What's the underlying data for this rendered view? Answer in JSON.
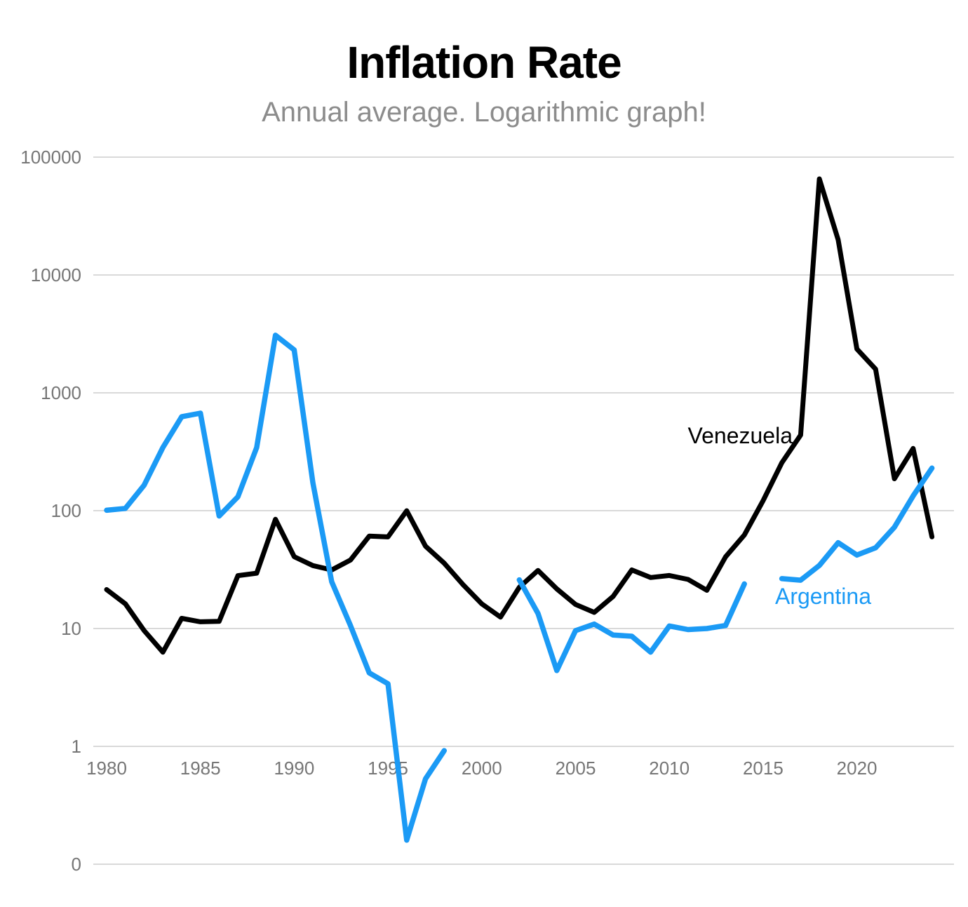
{
  "chart_data": {
    "type": "line",
    "title": "Inflation Rate",
    "subtitle": "Annual average. Logarithmic graph!",
    "y_scale": "log10",
    "grid": true,
    "grid_color": "#d9d9d9",
    "background_color": "#ffffff",
    "x_range": [
      1980,
      2024
    ],
    "y_axis": {
      "tick_labels": [
        "100000",
        "10000",
        "1000",
        "100",
        "10",
        "1",
        "0"
      ],
      "label_color": "#767676",
      "note": "logarithmic scale, one decade per gridline; bottom line labeled 0"
    },
    "x_axis": {
      "ticks": [
        1980,
        1985,
        1990,
        1995,
        2000,
        2005,
        2010,
        2015,
        2020
      ],
      "label_color": "#767676"
    },
    "legend_position": "inline-labels-on-chart",
    "series": [
      {
        "name": "Venezuela",
        "color": "#000000",
        "segments": [
          [
            [
              1980,
              21.4
            ],
            [
              1981,
              16.2
            ],
            [
              1982,
              9.6
            ],
            [
              1983,
              6.3
            ],
            [
              1984,
              12.2
            ],
            [
              1985,
              11.4
            ],
            [
              1986,
              11.5
            ],
            [
              1987,
              28.1
            ],
            [
              1988,
              29.5
            ],
            [
              1989,
              84.5
            ],
            [
              1990,
              40.7
            ],
            [
              1991,
              34.2
            ],
            [
              1992,
              31.4
            ],
            [
              1993,
              38.1
            ],
            [
              1994,
              60.8
            ],
            [
              1995,
              59.9
            ],
            [
              1996,
              99.9
            ],
            [
              1997,
              50.0
            ],
            [
              1998,
              35.8
            ],
            [
              1999,
              23.6
            ],
            [
              2000,
              16.2
            ],
            [
              2001,
              12.5
            ],
            [
              2002,
              22.4
            ],
            [
              2003,
              31.1
            ],
            [
              2004,
              21.7
            ],
            [
              2005,
              16.0
            ],
            [
              2006,
              13.7
            ],
            [
              2007,
              18.7
            ],
            [
              2008,
              31.4
            ],
            [
              2009,
              27.1
            ],
            [
              2010,
              28.2
            ],
            [
              2011,
              26.1
            ],
            [
              2012,
              21.1
            ],
            [
              2013,
              40.6
            ],
            [
              2014,
              62.2
            ],
            [
              2015,
              121.7
            ],
            [
              2016,
              254.9
            ],
            [
              2017,
              438.1
            ],
            [
              2018,
              65374
            ],
            [
              2019,
              19906
            ],
            [
              2020,
              2355
            ],
            [
              2021,
              1588
            ],
            [
              2022,
              186.5
            ],
            [
              2023,
              337.5
            ],
            [
              2024,
              60
            ]
          ]
        ]
      },
      {
        "name": "Argentina",
        "color": "#1b9af5",
        "segments": [
          [
            [
              1980,
              100.8
            ],
            [
              1981,
              104.5
            ],
            [
              1982,
              164.8
            ],
            [
              1983,
              343.8
            ],
            [
              1984,
              626.7
            ],
            [
              1985,
              672.2
            ],
            [
              1986,
              90.1
            ],
            [
              1987,
              131.3
            ],
            [
              1988,
              343.0
            ],
            [
              1989,
              3079.5
            ],
            [
              1990,
              2314.0
            ],
            [
              1991,
              171.7
            ],
            [
              1992,
              24.9
            ],
            [
              1993,
              10.6
            ],
            [
              1994,
              4.2
            ],
            [
              1995,
              3.4
            ],
            [
              1996,
              0.16
            ],
            [
              1997,
              0.53
            ],
            [
              1998,
              0.92
            ]
          ],
          [
            [
              2002,
              25.9
            ],
            [
              2003,
              13.4
            ],
            [
              2004,
              4.4
            ],
            [
              2005,
              9.6
            ],
            [
              2006,
              10.9
            ],
            [
              2007,
              8.8
            ],
            [
              2008,
              8.6
            ],
            [
              2009,
              6.3
            ],
            [
              2010,
              10.5
            ],
            [
              2011,
              9.8
            ],
            [
              2012,
              10.0
            ],
            [
              2013,
              10.6
            ],
            [
              2014,
              23.9
            ]
          ],
          [
            [
              2016,
              26.5
            ],
            [
              2017,
              25.7
            ],
            [
              2018,
              34.3
            ],
            [
              2019,
              53.5
            ],
            [
              2020,
              42.0
            ],
            [
              2021,
              48.4
            ],
            [
              2022,
              72.4
            ],
            [
              2023,
              133.5
            ],
            [
              2024,
              229.8
            ]
          ]
        ]
      }
    ]
  }
}
